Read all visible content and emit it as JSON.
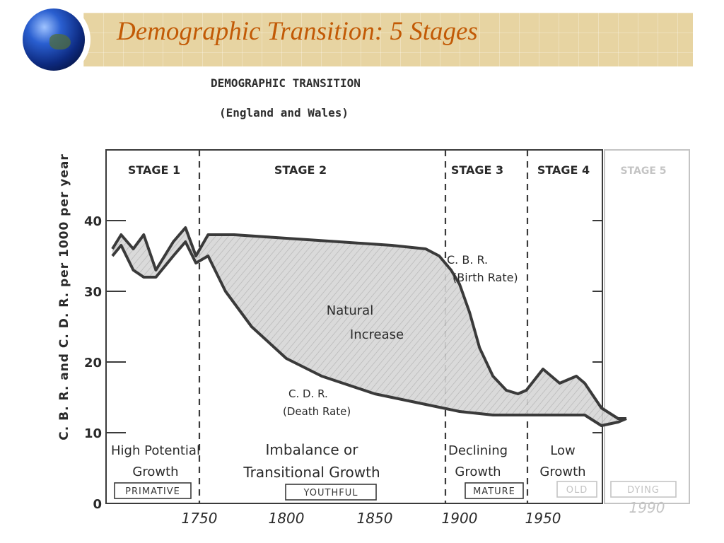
{
  "slide": {
    "title": "Demographic Transition: 5 Stages",
    "icon": "globe-icon",
    "accent_color": "#c25a06",
    "header_band_color": "#e7d4a2"
  },
  "chart_data": {
    "type": "area",
    "title": "DEMOGRAPHIC TRANSITION",
    "subtitle": "(England and Wales)",
    "ylabel": "C. B. R. and C. D. R. per 1000 per year",
    "xlabel": "",
    "ylim": [
      0,
      50
    ],
    "xlim": [
      1700,
      1975
    ],
    "yticks": [
      0,
      10,
      20,
      30,
      40
    ],
    "xticks": [
      1750,
      1800,
      1850,
      1900,
      1950
    ],
    "xtick_labels": [
      "1750",
      "1800",
      "1850",
      "1900",
      "1950"
    ],
    "series": [
      {
        "name": "C. B. R. (Birth Rate)",
        "x": [
          1700,
          1705,
          1712,
          1718,
          1725,
          1735,
          1742,
          1748,
          1755,
          1770,
          1800,
          1830,
          1860,
          1880,
          1888,
          1895,
          1900,
          1906,
          1912,
          1920,
          1928,
          1935,
          1940,
          1945,
          1950,
          1955,
          1960,
          1965,
          1970,
          1975,
          1985,
          1995,
          2000
        ],
        "y": [
          36,
          38,
          36,
          38,
          33,
          37,
          39,
          35,
          38,
          38,
          37.5,
          37,
          36.5,
          36,
          35,
          33,
          31,
          27,
          22,
          18,
          16,
          15.5,
          16,
          17.5,
          19,
          18,
          17,
          17.5,
          18,
          17,
          13.5,
          12,
          12
        ]
      },
      {
        "name": "C. D. R. (Death Rate)",
        "x": [
          1700,
          1705,
          1712,
          1718,
          1725,
          1735,
          1742,
          1748,
          1755,
          1765,
          1780,
          1800,
          1820,
          1850,
          1880,
          1900,
          1920,
          1940,
          1960,
          1975,
          1985,
          1995,
          2000
        ],
        "y": [
          35,
          36.5,
          33,
          32,
          32,
          35,
          37,
          34,
          35,
          30,
          25,
          20.5,
          18,
          15.5,
          14,
          13,
          12.5,
          12.5,
          12.5,
          12.5,
          11,
          11.5,
          12
        ]
      }
    ],
    "stages": [
      {
        "label": "STAGE 1",
        "note": [
          "High Potential",
          "Growth"
        ],
        "tag": "PRIMATIVE"
      },
      {
        "label": "STAGE 2",
        "note": [
          "Imbalance or",
          "Transitional Growth"
        ],
        "tag": "YOUTHFUL"
      },
      {
        "label": "STAGE 3",
        "note": [
          "Declining",
          "Growth"
        ],
        "tag": "MATURE"
      },
      {
        "label": "STAGE 4",
        "note": [
          "Low",
          "Growth"
        ],
        "tag": "OLD"
      },
      {
        "label": "STAGE 5",
        "note": [],
        "tag": "DYING"
      }
    ],
    "annotations": {
      "natural_increase": [
        "Natural",
        "Increase"
      ],
      "cbr": [
        "C. B. R.",
        "(Birth Rate)"
      ],
      "cdr": [
        "C. D. R.",
        "(Death Rate)"
      ],
      "faded_year": "1990"
    },
    "colors": {
      "line": "#3a3a3a",
      "fill": "#c8c8c8",
      "text": "#2a2a2a",
      "faded": "#c4c4c4"
    }
  }
}
